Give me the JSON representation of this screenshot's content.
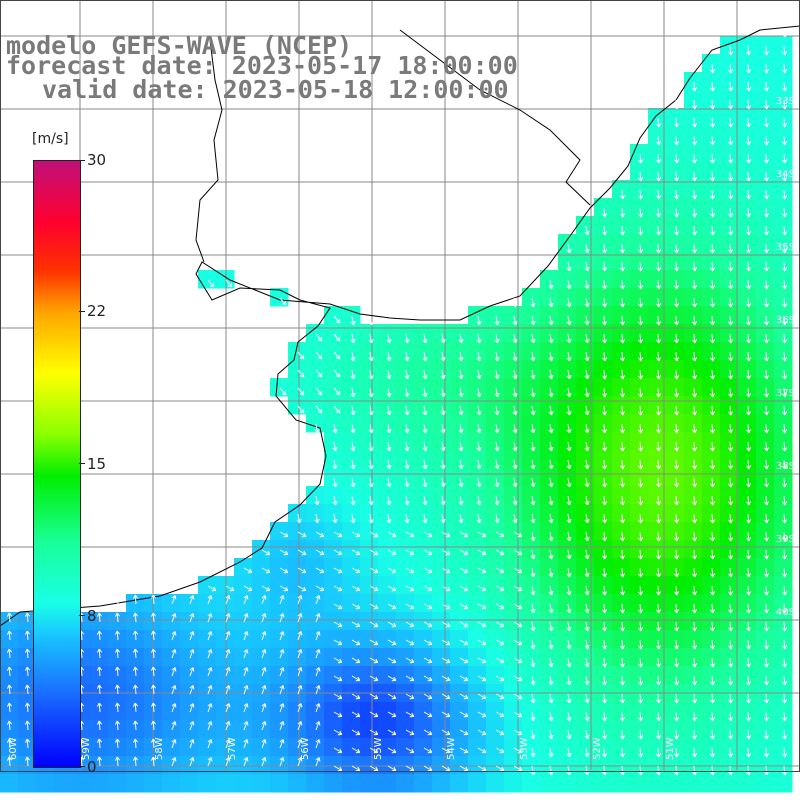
{
  "header": {
    "line1": "modelo GEFS-WAVE (NCEP)",
    "line2": "forecast date: 2023-05-17 18:00:00",
    "line3": "valid date: 2023-05-18 12:00:00"
  },
  "colorbar": {
    "unit": "[m/s]",
    "ticks": [
      "30",
      "22",
      "15",
      "8",
      "0"
    ],
    "range": [
      0,
      30
    ],
    "colors": [
      "#0000ff",
      "#18c8ff",
      "#19ffe6",
      "#00ee00",
      "#ffff00",
      "#ff3000",
      "#c0107a"
    ]
  },
  "grid": {
    "lat_labels": [
      "33S",
      "34S",
      "35S",
      "36S",
      "37S",
      "38S",
      "39S",
      "40S"
    ],
    "lon_labels": [
      "60W",
      "59W",
      "58W",
      "57W",
      "56W",
      "55W",
      "54W",
      "53W",
      "52W",
      "51W"
    ]
  },
  "colors": {
    "land": "#ffffff",
    "grid_line": "#888888",
    "coast": "#000000",
    "arrow": "#ffffff",
    "title": "#7a7a7a"
  }
}
